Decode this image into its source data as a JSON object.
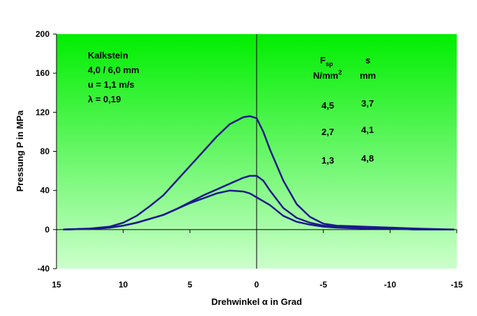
{
  "chart_data": {
    "type": "line",
    "title": "",
    "xlabel": "Drehwinkel α in Grad",
    "ylabel": "Pressung P in MPa",
    "xlim": [
      15,
      -15
    ],
    "ylim": [
      -40,
      200
    ],
    "x_ticks": [
      15,
      10,
      5,
      0,
      -5,
      -10,
      -15
    ],
    "y_ticks": [
      -40,
      0,
      40,
      80,
      120,
      160,
      200
    ],
    "background": "green-gradient",
    "grid": false,
    "annotations": {
      "material": "Kalkstein",
      "size": "4,0 / 6,0 mm",
      "velocity": "u = 1,1 m/s",
      "lambda": "λ = 0,19",
      "col1_header": "F",
      "col1_header_sub": "sp",
      "col1_unit": "N/mm",
      "col1_unit_sup": "2",
      "col2_header": "s",
      "col2_unit": "mm",
      "rows": [
        {
          "fsp": "4,5",
          "s": "3,7"
        },
        {
          "fsp": "2,7",
          "s": "4,1"
        },
        {
          "fsp": "1,3",
          "s": "4,8"
        }
      ]
    },
    "series": [
      {
        "name": "Fsp 4,5 N/mm2, s 3,7 mm",
        "color": "#1a1a8c",
        "x": [
          14.5,
          12.5,
          11,
          10,
          9,
          8,
          7,
          6,
          5,
          4,
          3,
          2,
          1,
          0.5,
          0,
          -0.5,
          -1,
          -2,
          -3,
          -4,
          -5,
          -6,
          -8,
          -10,
          -12,
          -14.8
        ],
        "y": [
          0,
          1,
          3,
          7,
          14,
          24,
          35,
          50,
          65,
          80,
          95,
          108,
          115,
          116,
          114,
          100,
          82,
          50,
          26,
          13,
          6,
          4,
          3,
          2,
          1,
          0
        ]
      },
      {
        "name": "Fsp 2,7 N/mm2, s 4,1 mm",
        "color": "#1a1a8c",
        "x": [
          14.5,
          12,
          11,
          10,
          9,
          8,
          7,
          6,
          5,
          4,
          3,
          2,
          1,
          0.5,
          0,
          -0.5,
          -1,
          -2,
          -3,
          -4,
          -5,
          -6,
          -8,
          -10,
          -12,
          -14.8
        ],
        "y": [
          0,
          1,
          2,
          4,
          7,
          11,
          15,
          21,
          28,
          35,
          41,
          47,
          53,
          55,
          55,
          50,
          40,
          22,
          12,
          7,
          4,
          3,
          2,
          1,
          0,
          0
        ]
      },
      {
        "name": "Fsp 1,3 N/mm2, s 4,8 mm",
        "color": "#1a1a8c",
        "x": [
          14.5,
          12,
          11,
          10,
          9,
          8,
          7,
          6,
          5,
          4,
          3,
          2,
          1,
          0.5,
          0,
          -1,
          -2,
          -3,
          -4,
          -5,
          -6,
          -8,
          -10,
          -12,
          -14.8
        ],
        "y": [
          0,
          1,
          2,
          4,
          7,
          11,
          15,
          21,
          27,
          32,
          37,
          40,
          39,
          37,
          33,
          25,
          14,
          8,
          5,
          3,
          2,
          1,
          1,
          0,
          0
        ]
      }
    ]
  }
}
